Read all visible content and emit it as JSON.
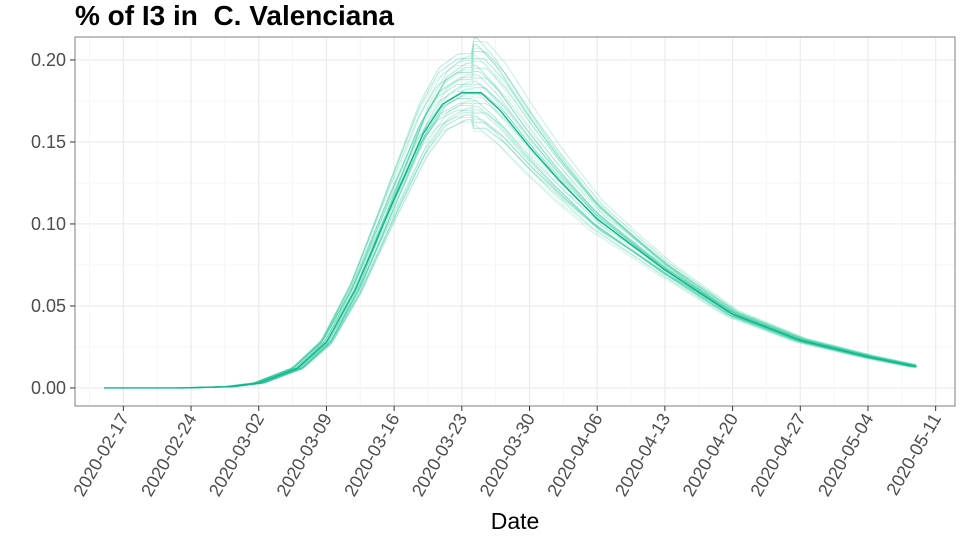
{
  "chart_data": {
    "type": "line",
    "title": "% of I3 in  C. Valenciana",
    "xlabel": "Date",
    "ylabel": "",
    "x_start": "2020-02-15",
    "x_end": "2020-05-09",
    "xlim": [
      "2020-02-12",
      "2020-05-13"
    ],
    "ylim": [
      -0.011,
      0.214
    ],
    "x_ticks": [
      "2020-02-17",
      "2020-02-24",
      "2020-03-02",
      "2020-03-09",
      "2020-03-16",
      "2020-03-23",
      "2020-03-30",
      "2020-04-06",
      "2020-04-13",
      "2020-04-20",
      "2020-04-27",
      "2020-05-04",
      "2020-05-11"
    ],
    "y_ticks": [
      "0.00",
      "0.05",
      "0.10",
      "0.15",
      "0.20"
    ],
    "grid": true,
    "central_series": {
      "name": "",
      "points": [
        {
          "x": "2020-02-15",
          "y": 0.0
        },
        {
          "x": "2020-02-23",
          "y": 0.0
        },
        {
          "x": "2020-02-28",
          "y": 0.0008
        },
        {
          "x": "2020-03-02",
          "y": 0.003
        },
        {
          "x": "2020-03-06",
          "y": 0.012
        },
        {
          "x": "2020-03-09",
          "y": 0.028
        },
        {
          "x": "2020-03-12",
          "y": 0.06
        },
        {
          "x": "2020-03-16",
          "y": 0.115
        },
        {
          "x": "2020-03-19",
          "y": 0.155
        },
        {
          "x": "2020-03-21",
          "y": 0.173
        },
        {
          "x": "2020-03-23",
          "y": 0.18
        },
        {
          "x": "2020-03-25",
          "y": 0.18
        },
        {
          "x": "2020-03-27",
          "y": 0.169
        },
        {
          "x": "2020-03-30",
          "y": 0.147
        },
        {
          "x": "2020-04-02",
          "y": 0.127
        },
        {
          "x": "2020-04-06",
          "y": 0.103
        },
        {
          "x": "2020-04-13",
          "y": 0.072
        },
        {
          "x": "2020-04-20",
          "y": 0.045
        },
        {
          "x": "2020-04-27",
          "y": 0.029
        },
        {
          "x": "2020-05-04",
          "y": 0.019
        },
        {
          "x": "2020-05-09",
          "y": 0.013
        }
      ]
    },
    "ensemble": {
      "count": 30,
      "peak_min": 0.163,
      "peak_max": 0.205
    },
    "colors": {
      "line": "#10b48c",
      "ensemble": "#2ec99c",
      "grid_major": "#ebebeb",
      "grid_minor": "#f5f5f5",
      "panel_border": "#7f7f7f"
    }
  }
}
